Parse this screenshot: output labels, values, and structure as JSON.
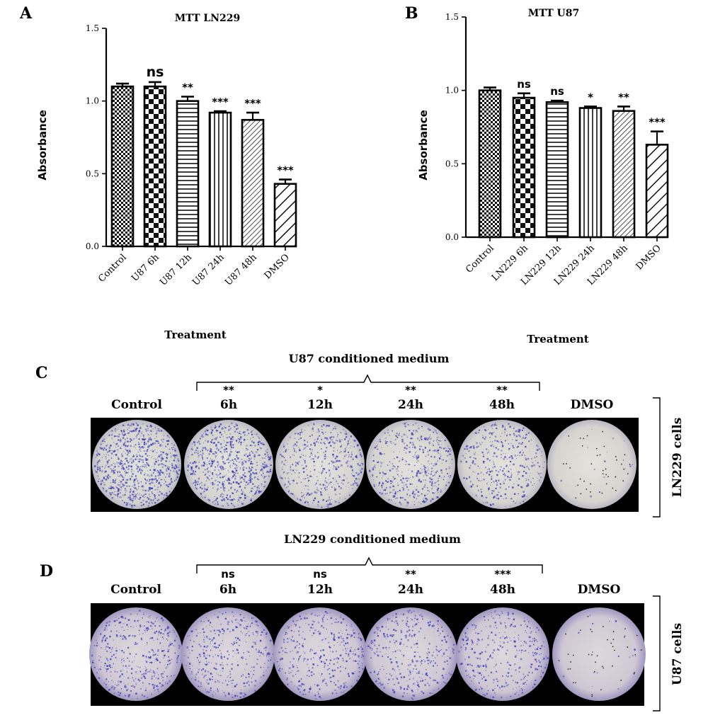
{
  "figure": {
    "panel_labels": {
      "A": "A",
      "B": "B",
      "C": "C",
      "D": "D"
    },
    "panel_c": {
      "group_label": "U87 conditioned medium",
      "side_label": "LN229 cells",
      "columns": [
        {
          "label": "Control",
          "sig": ""
        },
        {
          "label": "6h",
          "sig": "**"
        },
        {
          "label": "12h",
          "sig": "*"
        },
        {
          "label": "24h",
          "sig": "**"
        },
        {
          "label": "48h",
          "sig": "**"
        },
        {
          "label": "DMSO",
          "sig": ""
        }
      ],
      "stain_density": [
        1.0,
        0.85,
        0.55,
        0.55,
        0.45,
        0.02
      ]
    },
    "panel_d": {
      "group_label": "LN229 conditioned medium",
      "side_label": "U87 cells",
      "columns": [
        {
          "label": "Control",
          "sig": ""
        },
        {
          "label": "6h",
          "sig": "ns"
        },
        {
          "label": "12h",
          "sig": "ns"
        },
        {
          "label": "24h",
          "sig": "**"
        },
        {
          "label": "48h",
          "sig": "***"
        },
        {
          "label": "DMSO",
          "sig": ""
        }
      ],
      "stain_density": [
        0.5,
        0.45,
        0.45,
        0.42,
        0.4,
        0.02
      ]
    },
    "colors": {
      "stain": "#3a3ab8",
      "dish": "#d8d6d0",
      "background": "#000000"
    }
  },
  "chart_data": [
    {
      "type": "bar",
      "title": "MTT LN229",
      "xlabel": "Treatment",
      "ylabel": "Absorbance",
      "ylim": [
        0,
        1.5
      ],
      "yticks": [
        "0.0",
        "0.5",
        "1.0",
        "1.5"
      ],
      "categories": [
        "Control",
        "U87 6h",
        "U87 12h",
        "U87 24h",
        "U87 48h",
        "DMSO"
      ],
      "values": [
        1.1,
        1.1,
        1.0,
        0.92,
        0.87,
        0.43
      ],
      "errors": [
        0.02,
        0.03,
        0.03,
        0.01,
        0.05,
        0.03
      ],
      "annotations": [
        "",
        "ns",
        "**",
        "***",
        "***",
        "***"
      ],
      "patterns": [
        "checker-small",
        "checker-large",
        "hlines",
        "vlines",
        "diag-fine",
        "diag-wide"
      ]
    },
    {
      "type": "bar",
      "title": "MTT U87",
      "xlabel": "Treatment",
      "ylabel": "Absorbance",
      "ylim": [
        0,
        1.5
      ],
      "yticks": [
        "0.0",
        "0.5",
        "1.0",
        "1.5"
      ],
      "categories": [
        "Control",
        "LN229 6h",
        "LN229 12h",
        "LN229 24h",
        "LN229 48h",
        "DMSO"
      ],
      "values": [
        1.0,
        0.95,
        0.92,
        0.88,
        0.86,
        0.63
      ],
      "errors": [
        0.02,
        0.03,
        0.01,
        0.01,
        0.03,
        0.09
      ],
      "annotations": [
        "",
        "ns",
        "ns",
        "*",
        "**",
        "***"
      ],
      "patterns": [
        "checker-small",
        "checker-large",
        "hlines",
        "vlines",
        "diag-fine",
        "diag-wide"
      ]
    }
  ]
}
